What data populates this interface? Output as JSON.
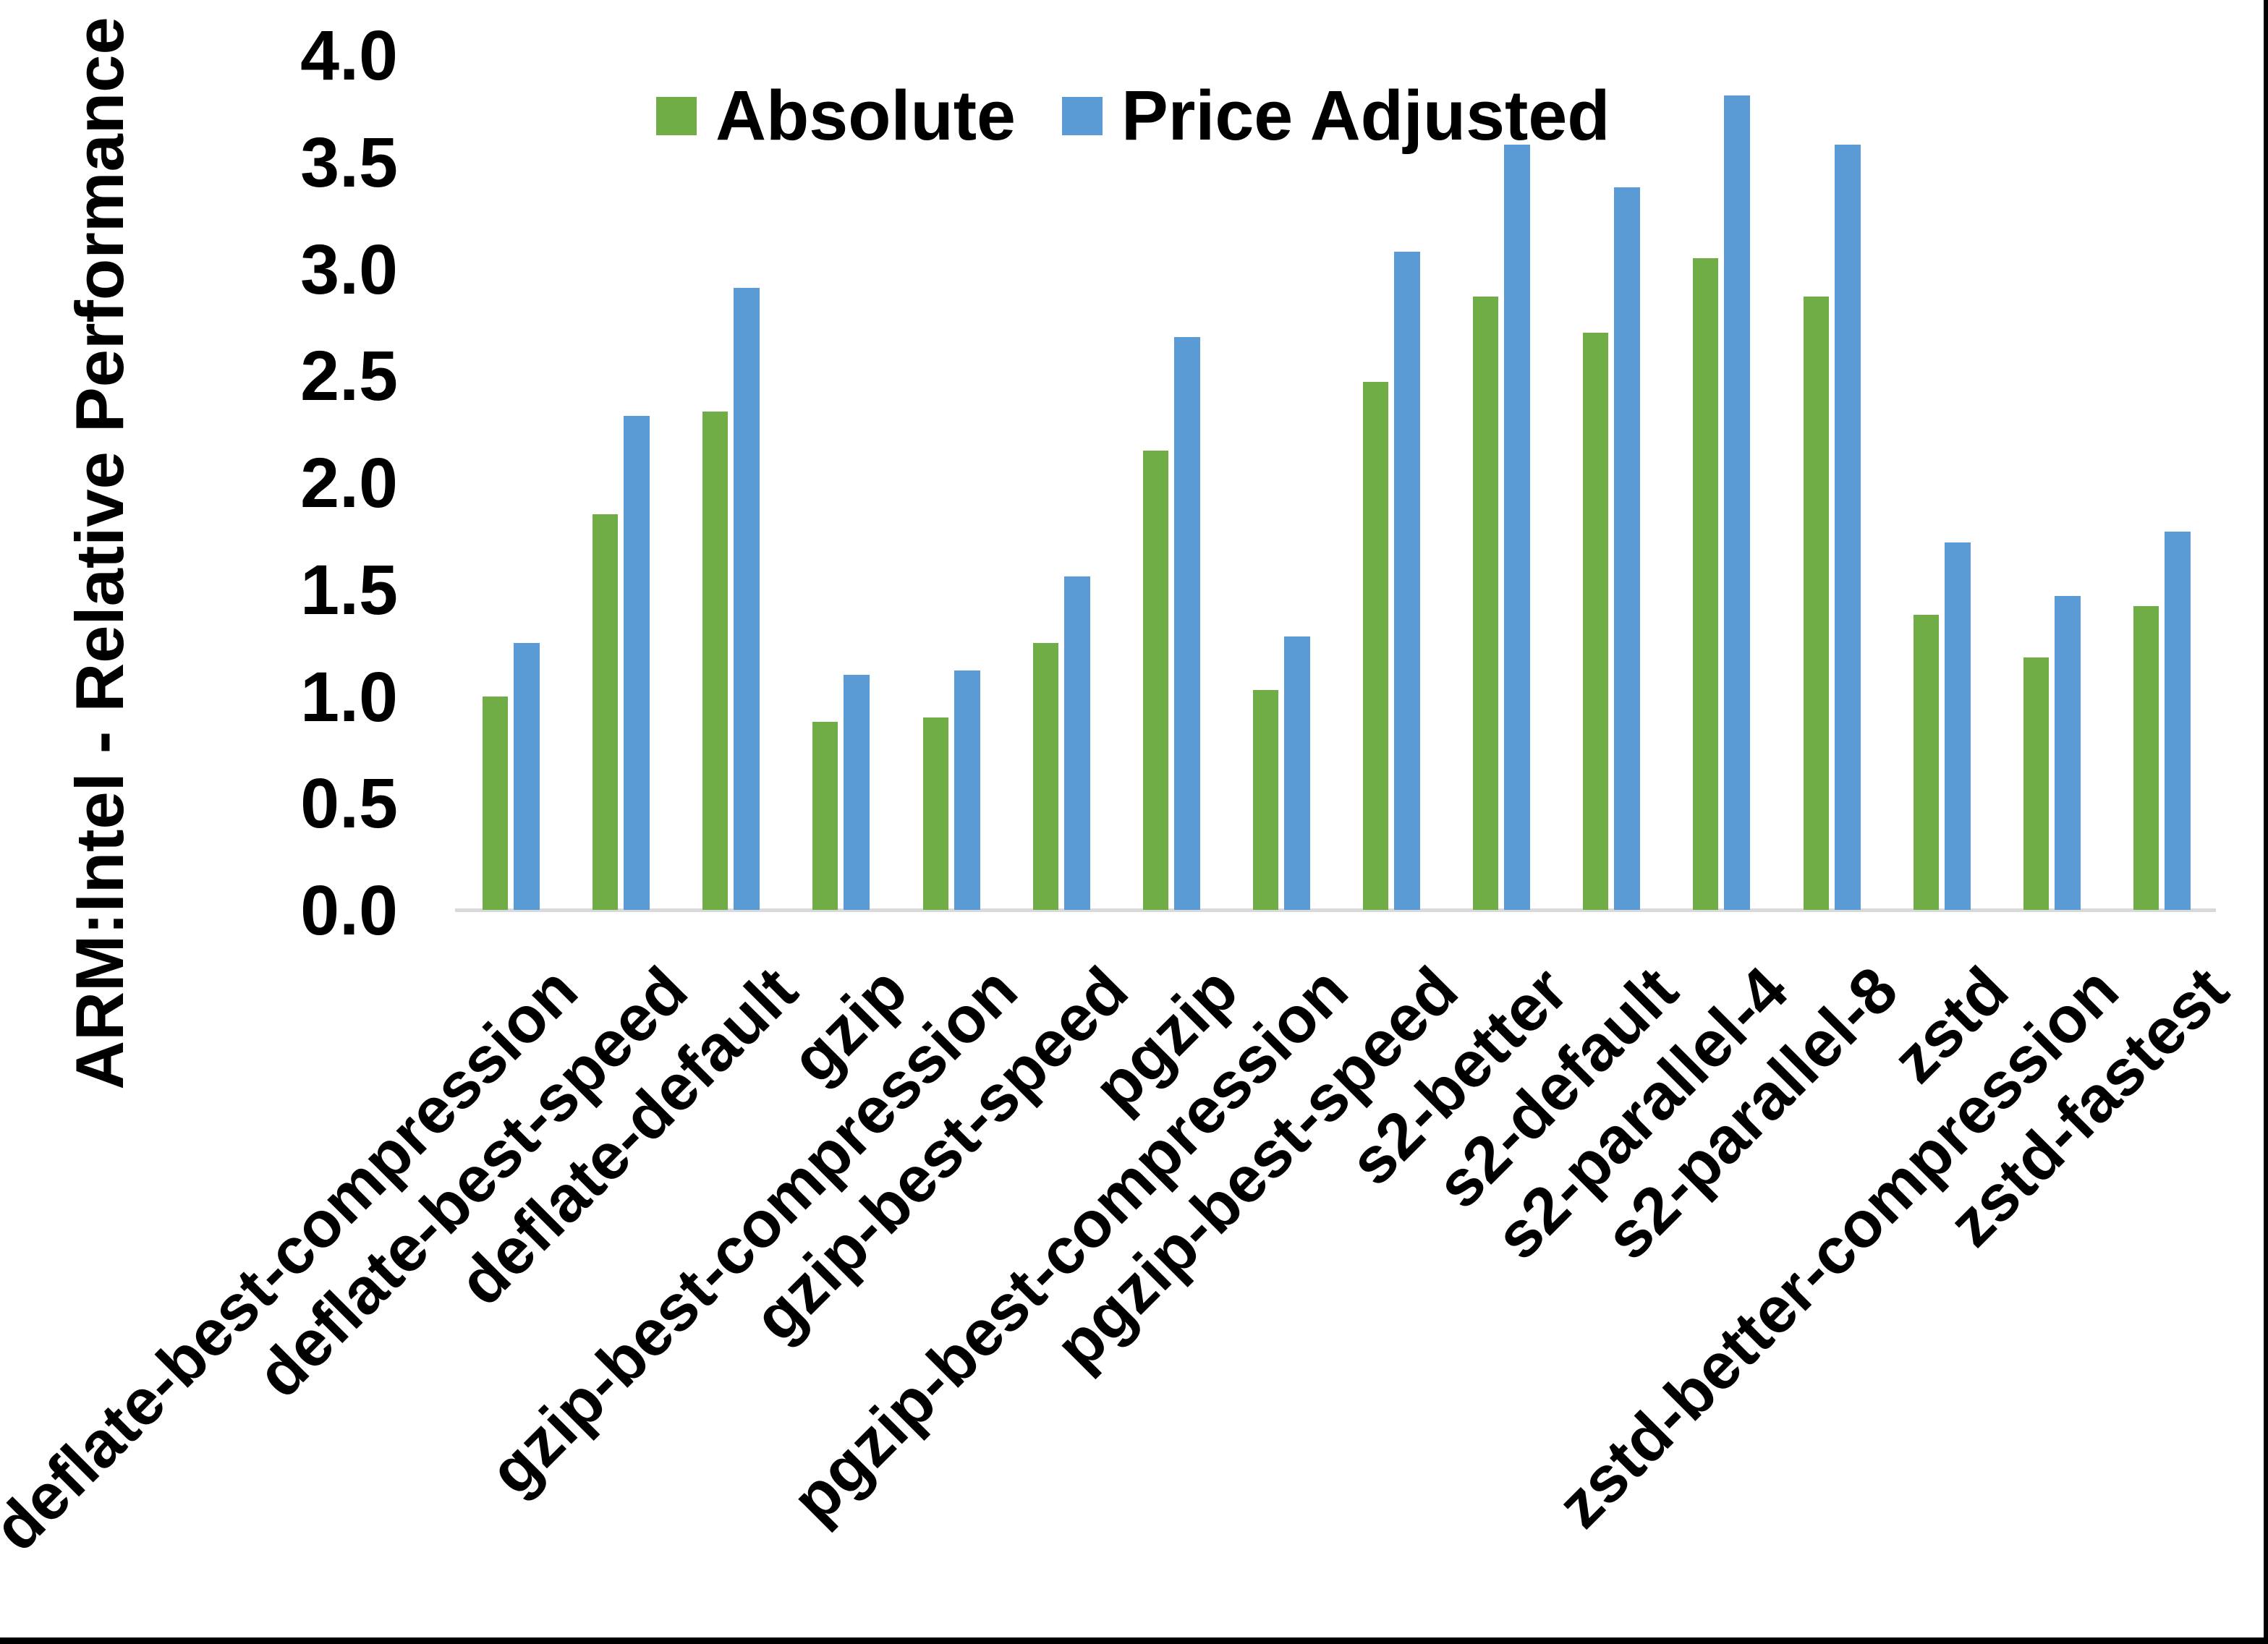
{
  "chart_data": {
    "type": "bar",
    "title": "",
    "ylabel": "ARM:Intel - Relative Performance",
    "xlabel": "",
    "ylim": [
      0.0,
      4.0
    ],
    "ytick_step": 0.5,
    "ytick_labels": [
      "0.0",
      "0.5",
      "1.0",
      "1.5",
      "2.0",
      "2.5",
      "3.0",
      "3.5",
      "4.0"
    ],
    "grid": "off",
    "legend_position": "top",
    "categories": [
      "deflate-best-compression",
      "deflate-best-speed",
      "deflate-default",
      "gzip",
      "gzip-best-compression",
      "gzip-best-speed",
      "pgzip",
      "pgzip-best-compression",
      "pgzip-best-speed",
      "s2-better",
      "s2-default",
      "s2-parallel-4",
      "s2-parallel-8",
      "zstd",
      "zstd-better-compression",
      "zstd-fastest"
    ],
    "series": [
      {
        "name": "Absolute",
        "color": "#70AD47",
        "values": [
          1.0,
          1.85,
          2.33,
          0.88,
          0.9,
          1.25,
          2.15,
          1.03,
          2.47,
          2.87,
          2.7,
          3.05,
          2.87,
          1.38,
          1.18,
          1.42
        ]
      },
      {
        "name": "Price Adjusted",
        "color": "#5B9BD5",
        "values": [
          1.25,
          2.31,
          2.91,
          1.1,
          1.12,
          1.56,
          2.68,
          1.28,
          3.08,
          3.58,
          3.38,
          3.81,
          3.58,
          1.72,
          1.47,
          1.77
        ]
      }
    ],
    "axis_line_color": "#d9d9d9",
    "text_color": "#000000"
  }
}
